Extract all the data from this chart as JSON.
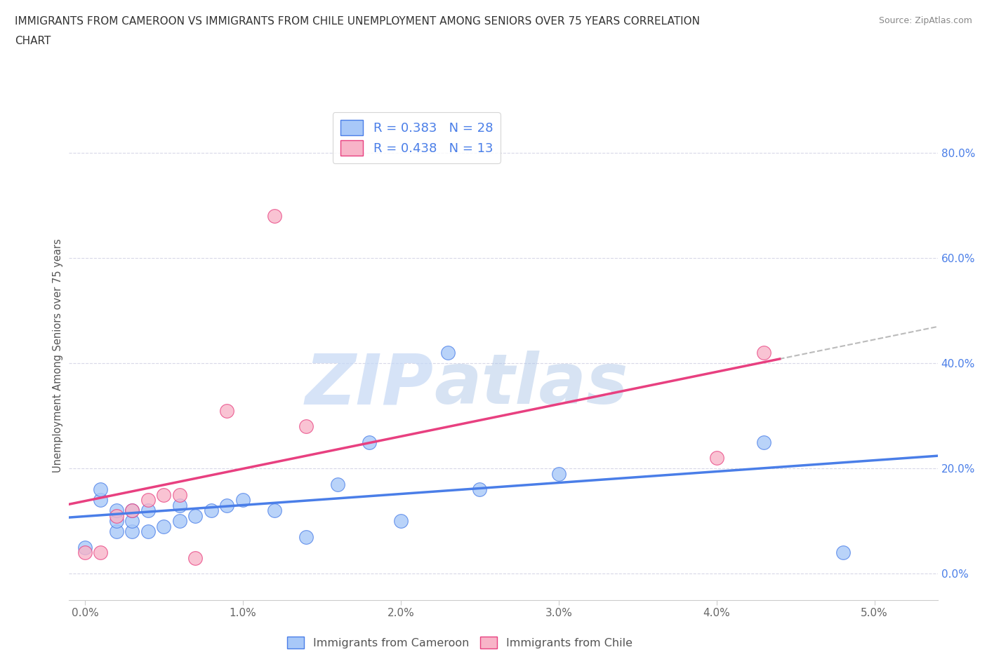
{
  "title_line1": "IMMIGRANTS FROM CAMEROON VS IMMIGRANTS FROM CHILE UNEMPLOYMENT AMONG SENIORS OVER 75 YEARS CORRELATION",
  "title_line2": "CHART",
  "source": "Source: ZipAtlas.com",
  "xlabel_ticks": [
    "0.0%",
    "1.0%",
    "2.0%",
    "3.0%",
    "4.0%",
    "5.0%"
  ],
  "ylabel_ticks": [
    "0.0%",
    "20.0%",
    "40.0%",
    "60.0%",
    "80.0%"
  ],
  "xlim": [
    -0.001,
    0.054
  ],
  "ylim": [
    -0.05,
    0.88
  ],
  "cameron_x": [
    0.0,
    0.001,
    0.001,
    0.002,
    0.002,
    0.002,
    0.003,
    0.003,
    0.003,
    0.004,
    0.004,
    0.005,
    0.006,
    0.006,
    0.007,
    0.008,
    0.009,
    0.01,
    0.012,
    0.014,
    0.016,
    0.018,
    0.02,
    0.023,
    0.025,
    0.03,
    0.043,
    0.048
  ],
  "cameron_y": [
    0.05,
    0.14,
    0.16,
    0.08,
    0.1,
    0.12,
    0.08,
    0.1,
    0.12,
    0.08,
    0.12,
    0.09,
    0.1,
    0.13,
    0.11,
    0.12,
    0.13,
    0.14,
    0.12,
    0.07,
    0.17,
    0.25,
    0.1,
    0.42,
    0.16,
    0.19,
    0.25,
    0.04
  ],
  "chile_x": [
    0.0,
    0.001,
    0.002,
    0.003,
    0.004,
    0.005,
    0.006,
    0.007,
    0.009,
    0.012,
    0.014,
    0.04,
    0.043
  ],
  "chile_y": [
    0.04,
    0.04,
    0.11,
    0.12,
    0.14,
    0.15,
    0.15,
    0.03,
    0.31,
    0.68,
    0.28,
    0.22,
    0.42
  ],
  "cameron_color": "#a8c8f8",
  "chile_color": "#f8b4c8",
  "cameron_line_color": "#4a7ee8",
  "chile_line_color": "#e84080",
  "dashed_color": "#bbbbbb",
  "cameron_R": 0.383,
  "cameron_N": 28,
  "chile_R": 0.438,
  "chile_N": 13,
  "legend_label_cameron": "R = 0.383   N = 28",
  "legend_label_chile": "R = 0.438   N = 13",
  "legend_label_cameron_bottom": "Immigrants from Cameroon",
  "legend_label_chile_bottom": "Immigrants from Chile",
  "marker_size": 200,
  "bg_color": "#ffffff",
  "grid_color": "#d8d8e8",
  "text_color": "#4a7ee8",
  "watermark_zip": "ZIP",
  "watermark_atlas": "atlas",
  "ylabel": "Unemployment Among Seniors over 75 years"
}
